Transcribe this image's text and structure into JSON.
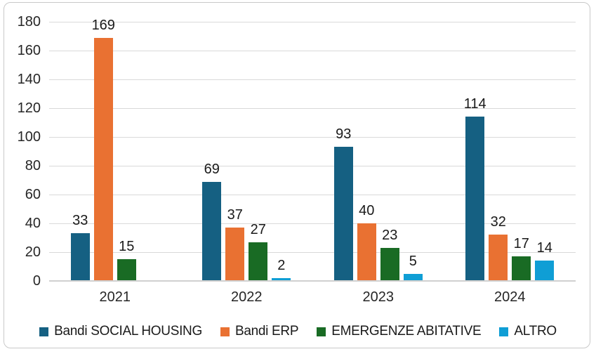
{
  "chart_data": {
    "type": "bar",
    "title": "",
    "xlabel": "",
    "ylabel": "",
    "categories": [
      "2021",
      "2022",
      "2023",
      "2024"
    ],
    "series": [
      {
        "name": "Bandi SOCIAL HOUSING",
        "color": "#156082",
        "values": [
          33,
          69,
          93,
          114
        ]
      },
      {
        "name": "Bandi ERP",
        "color": "#E97132",
        "values": [
          169,
          37,
          40,
          32
        ]
      },
      {
        "name": "EMERGENZE ABITATIVE",
        "color": "#196B24",
        "values": [
          15,
          27,
          23,
          17
        ]
      },
      {
        "name": "ALTRO",
        "color": "#0F9ED5",
        "values": [
          null,
          2,
          5,
          14
        ]
      }
    ],
    "yticks": [
      0,
      20,
      40,
      60,
      80,
      100,
      120,
      140,
      160,
      180
    ],
    "ylim": [
      0,
      180
    ],
    "grid": true,
    "data_labels": true,
    "legend_position": "bottom"
  },
  "theme": {
    "background": "#FFFFFF",
    "frame_border": "#C9C9C9",
    "gridline": "#D9D9D9",
    "axis_line": "#D0D0D0",
    "tick_text": "#262626",
    "label_text": "#1A1A1A"
  }
}
